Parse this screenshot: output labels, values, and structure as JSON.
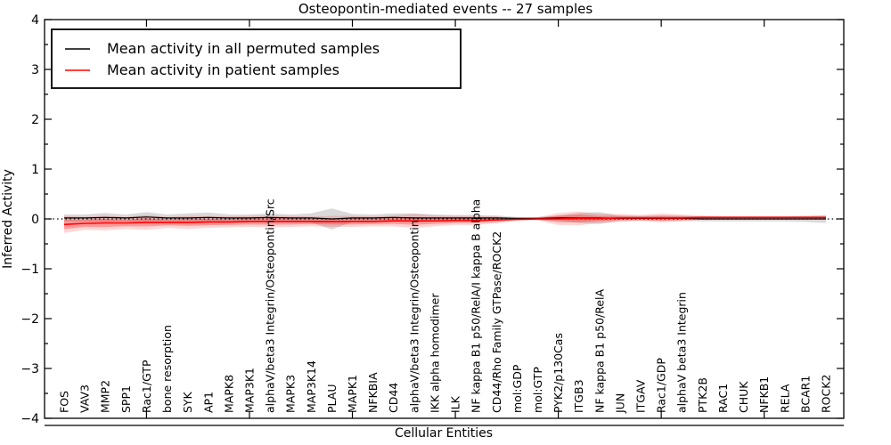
{
  "figure": {
    "title": "Osteopontin-mediated events -- 27 samples",
    "xlabel": "Cellular Entities",
    "ylabel": "Inferred Activity"
  },
  "legend": {
    "position": "upper left",
    "entries": [
      {
        "label": "Mean activity in all permuted samples",
        "color": "#000000"
      },
      {
        "label": "Mean activity in patient samples",
        "color": "#ff0000"
      }
    ]
  },
  "colors": {
    "permuted_line": "#000000",
    "patient_line": "#ff0000",
    "permuted_band": "rgba(128,128,128,0.30)",
    "patient_band_outer": "rgba(255,0,0,0.16)",
    "patient_band_inner": "rgba(255,0,0,0.28)",
    "axis": "#000000",
    "background": "#ffffff"
  },
  "chart_data": {
    "type": "line",
    "title": "Osteopontin-mediated events -- 27 samples",
    "xlabel": "Cellular Entities",
    "ylabel": "Inferred Activity",
    "ylim": [
      -4,
      4
    ],
    "yticks": [
      -4,
      -3,
      -2,
      -1,
      0,
      1,
      2,
      3,
      4
    ],
    "ytick_minor_step": 0.5,
    "xticks": [
      5,
      10,
      15,
      20,
      25,
      30,
      35
    ],
    "grid": false,
    "legend_position": "upper left",
    "zero_line": {
      "y": 0,
      "style": "dotted",
      "color": "#000000"
    },
    "categories": [
      "FOS",
      "VAV3",
      "MMP2",
      "SPP1",
      "Rac1/GTP",
      "bone resorption",
      "SYK",
      "AP1",
      "MAPK8",
      "MAP3K1",
      "alphaV/beta3 Integrin/Osteopontin/Src",
      "MAPK3",
      "MAP3K14",
      "PLAU",
      "MAPK1",
      "NFKBIA",
      "CD44",
      "alphaV/beta3 Integrin/Osteopontin",
      "IKK alpha homodimer",
      "ILK",
      "NF kappa B1 p50/RelA/I kappa B alpha",
      "CD44/Rho Family GTPase/ROCK2",
      "mol:GDP",
      "mol:GTP",
      "PYK2/p130Cas",
      "ITGB3",
      "NF kappa B1 p50/RelA",
      "JUN",
      "ITGAV",
      "Rac1/GDP",
      "alphaV beta3 Integrin",
      "PTK2B",
      "RAC1",
      "CHUK",
      "NFKB1",
      "RELA",
      "BCAR1",
      "ROCK2"
    ],
    "series": [
      {
        "name": "Mean activity in all permuted samples",
        "color": "#000000",
        "values": [
          0.02,
          0.02,
          0.03,
          0.02,
          0.04,
          0.02,
          0.02,
          0.03,
          0.02,
          0.02,
          0.03,
          0.02,
          0.02,
          0.0,
          0.02,
          0.02,
          0.03,
          0.02,
          0.02,
          0.02,
          0.02,
          0.02,
          0.01,
          0.01,
          0.02,
          0.02,
          0.02,
          0.01,
          0.01,
          0.01,
          0.01,
          0.0,
          0.0,
          0.0,
          0.0,
          0.0,
          0.0,
          0.0
        ],
        "band_halfwidth": [
          0.07,
          0.07,
          0.09,
          0.07,
          0.1,
          0.07,
          0.09,
          0.1,
          0.07,
          0.07,
          0.08,
          0.07,
          0.09,
          0.21,
          0.08,
          0.07,
          0.08,
          0.09,
          0.07,
          0.06,
          0.06,
          0.05,
          0.03,
          0.03,
          0.05,
          0.1,
          0.12,
          0.05,
          0.05,
          0.05,
          0.05,
          0.05,
          0.05,
          0.05,
          0.05,
          0.05,
          0.06,
          0.08
        ]
      },
      {
        "name": "Mean activity in patient samples",
        "color": "#ff0000",
        "values": [
          -0.11,
          -0.09,
          -0.08,
          -0.08,
          -0.07,
          -0.07,
          -0.07,
          -0.06,
          -0.06,
          -0.05,
          -0.05,
          -0.05,
          -0.05,
          -0.05,
          -0.05,
          -0.05,
          -0.04,
          -0.04,
          -0.04,
          -0.03,
          -0.03,
          -0.02,
          -0.01,
          0.0,
          0.0,
          0.01,
          0.01,
          0.02,
          0.02,
          0.02,
          0.02,
          0.03,
          0.03,
          0.03,
          0.03,
          0.03,
          0.03,
          0.03
        ],
        "band_halfwidth": [
          0.17,
          0.13,
          0.15,
          0.12,
          0.15,
          0.11,
          0.13,
          0.12,
          0.11,
          0.11,
          0.12,
          0.11,
          0.1,
          0.11,
          0.11,
          0.1,
          0.11,
          0.14,
          0.11,
          0.09,
          0.09,
          0.07,
          0.02,
          0.03,
          0.12,
          0.14,
          0.09,
          0.08,
          0.06,
          0.09,
          0.07,
          0.04,
          0.03,
          0.03,
          0.03,
          0.03,
          0.03,
          0.03
        ]
      }
    ]
  }
}
